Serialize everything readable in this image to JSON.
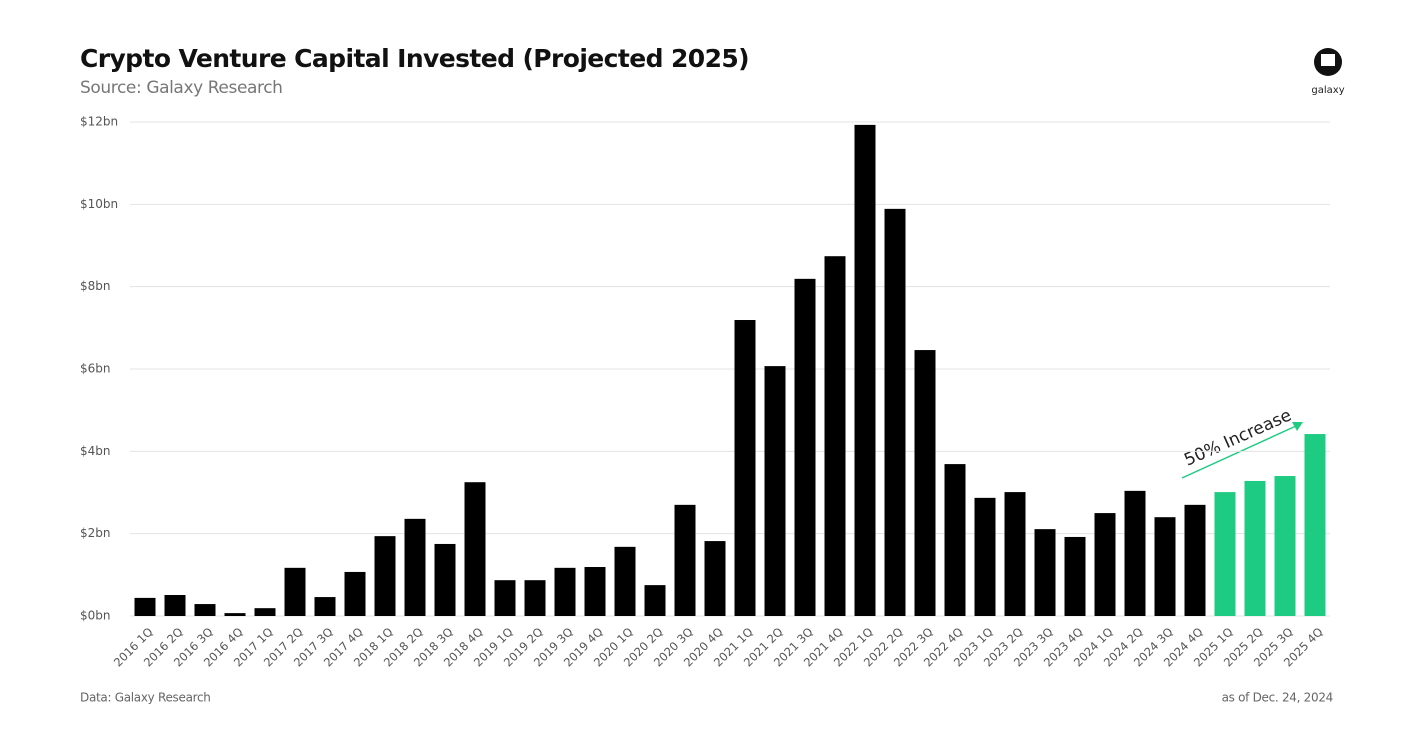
{
  "chart_data": {
    "type": "bar",
    "title": "Crypto Venture Capital Invested (Projected 2025)",
    "subtitle": "Source: Galaxy Research",
    "source_note": "Data: Galaxy Research",
    "date_note": "as of Dec. 24, 2024",
    "logo": "galaxy",
    "annotation": "50% Increase",
    "categories": [
      "2016 1Q",
      "2016 2Q",
      "2016 3Q",
      "2016 4Q",
      "2017 1Q",
      "2017 2Q",
      "2017 3Q",
      "2017 4Q",
      "2018 1Q",
      "2018 2Q",
      "2018 3Q",
      "2018 4Q",
      "2019 1Q",
      "2019 2Q",
      "2019 3Q",
      "2019 4Q",
      "2020 1Q",
      "2020 2Q",
      "2020 3Q",
      "2020 4Q",
      "2021 1Q",
      "2021 2Q",
      "2021 3Q",
      "2021 4Q",
      "2022 1Q",
      "2022 2Q",
      "2022 3Q",
      "2022 4Q",
      "2023 1Q",
      "2023 2Q",
      "2023 3Q",
      "2023 4Q",
      "2024 1Q",
      "2024 2Q",
      "2024 3Q",
      "2024 4Q",
      "2025 1Q",
      "2025 2Q",
      "2025 3Q",
      "2025 4Q"
    ],
    "values": [
      0.44,
      0.51,
      0.29,
      0.07,
      0.19,
      1.17,
      0.46,
      1.07,
      1.94,
      2.36,
      1.75,
      3.25,
      0.87,
      0.87,
      1.17,
      1.19,
      1.68,
      0.75,
      2.7,
      1.82,
      7.19,
      6.07,
      8.19,
      8.74,
      11.93,
      9.89,
      6.46,
      3.69,
      2.87,
      3.01,
      2.11,
      1.92,
      2.5,
      3.04,
      2.4,
      2.7,
      3.01,
      3.28,
      3.4,
      4.42
    ],
    "colors": [
      "#000000",
      "#000000",
      "#000000",
      "#000000",
      "#000000",
      "#000000",
      "#000000",
      "#000000",
      "#000000",
      "#000000",
      "#000000",
      "#000000",
      "#000000",
      "#000000",
      "#000000",
      "#000000",
      "#000000",
      "#000000",
      "#000000",
      "#000000",
      "#000000",
      "#000000",
      "#000000",
      "#000000",
      "#000000",
      "#000000",
      "#000000",
      "#000000",
      "#000000",
      "#000000",
      "#000000",
      "#000000",
      "#000000",
      "#000000",
      "#000000",
      "#000000",
      "#1ecb82",
      "#1ecb82",
      "#1ecb82",
      "#1ecb82"
    ],
    "ylim": [
      0,
      12
    ],
    "yticks": [
      {
        "value": 0,
        "label": "$0bn"
      },
      {
        "value": 2,
        "label": "$2bn"
      },
      {
        "value": 4,
        "label": "$4bn"
      },
      {
        "value": 6,
        "label": "$6bn"
      },
      {
        "value": 8,
        "label": "$8bn"
      },
      {
        "value": 10,
        "label": "$10bn"
      },
      {
        "value": 12,
        "label": "$12bn"
      }
    ],
    "grid": true
  }
}
